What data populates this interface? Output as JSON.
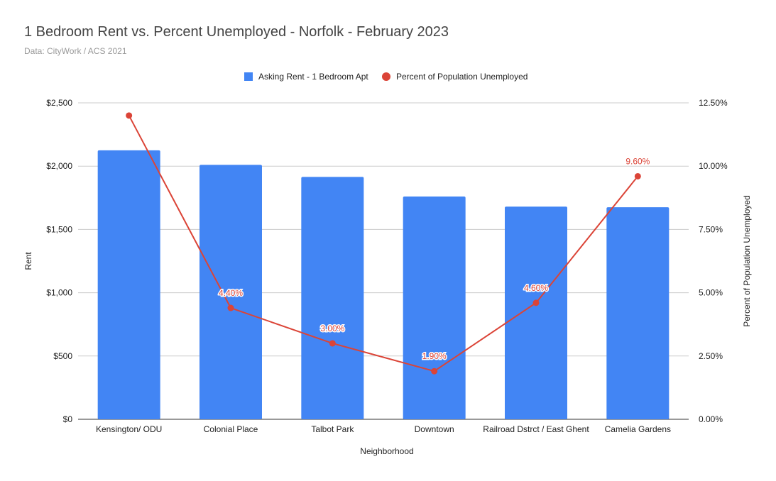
{
  "chart_data": {
    "type": "bar",
    "title": "1 Bedroom Rent vs. Percent Unemployed - Norfolk - February 2023",
    "subtitle": "Data: CityWork / ACS 2021",
    "xlabel": "Neighborhood",
    "ylabel": "Rent",
    "y2label": "Percent of Population Unemployed",
    "categories": [
      "Kensington/ ODU",
      "Colonial Place",
      "Talbot Park",
      "Downtown",
      "Railroad Dstrct / East Ghent",
      "Camelia Gardens"
    ],
    "ylim": [
      0,
      2500
    ],
    "y_ticks": [
      "$0",
      "$500",
      "$1,000",
      "$1,500",
      "$2,000",
      "$2,500"
    ],
    "y2lim": [
      0,
      12.5
    ],
    "y2_ticks": [
      "0.00%",
      "2.50%",
      "5.00%",
      "7.50%",
      "10.00%",
      "12.50%"
    ],
    "legend_position": "top",
    "series": [
      {
        "name": "Asking Rent - 1 Bedroom Apt",
        "type": "bar",
        "axis": "left",
        "color": "#4285f4",
        "values": [
          2125,
          2010,
          1915,
          1760,
          1680,
          1675
        ]
      },
      {
        "name": "Percent of Population Unemployed",
        "type": "line",
        "axis": "right",
        "color": "#db4437",
        "values": [
          12.0,
          4.4,
          3.0,
          1.9,
          4.6,
          9.6
        ],
        "labels": [
          "",
          "4.40%",
          "3.00%",
          "1.90%",
          "4.60%",
          "9.60%"
        ]
      }
    ]
  }
}
